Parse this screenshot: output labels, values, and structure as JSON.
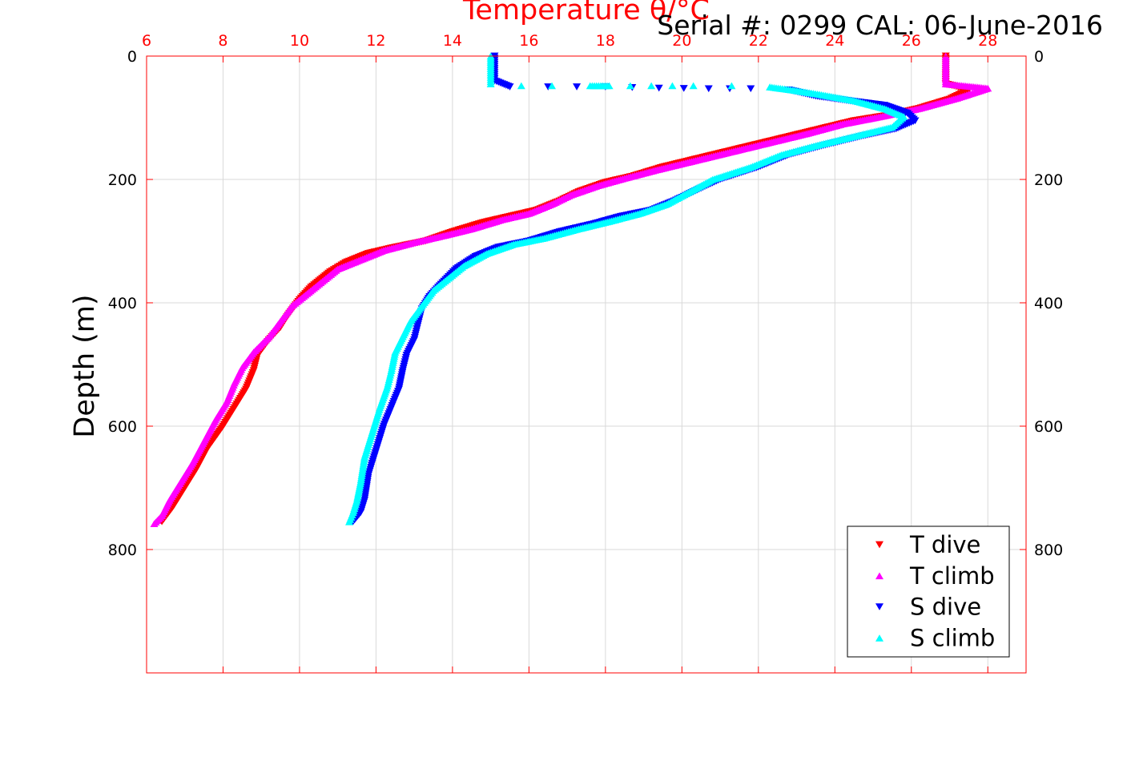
{
  "chart_data": {
    "type": "scatter",
    "title": "Serial #: 0299 CAL: 06-June-2016",
    "xlabel": "Temperature θ/°C",
    "ylabel": "Depth (m)",
    "xlim": [
      6,
      29
    ],
    "ylim": [
      0,
      1000
    ],
    "y_reversed": true,
    "x_axis_position": "top",
    "x_ticks": [
      "6",
      "8",
      "10",
      "12",
      "14",
      "16",
      "18",
      "20",
      "22",
      "24",
      "26",
      "28"
    ],
    "y_ticks_left": [
      "0",
      "200",
      "400",
      "600",
      "800"
    ],
    "y_ticks_right": [
      "0",
      "200",
      "400",
      "600",
      "800"
    ],
    "grid": true,
    "legend_position": "bottom-right",
    "colors": {
      "axis": "#ff0000",
      "grid": "#d9d9d9"
    },
    "series": [
      {
        "name": "T dive",
        "marker": "triangle-down",
        "color": "#ff0000",
        "points": [
          [
            26.9,
            0
          ],
          [
            26.9,
            20
          ],
          [
            26.9,
            45
          ],
          [
            27.5,
            55
          ],
          [
            27.0,
            70
          ],
          [
            26.2,
            85
          ],
          [
            25.5,
            95
          ],
          [
            24.5,
            105
          ],
          [
            23.5,
            120
          ],
          [
            22.5,
            135
          ],
          [
            21.5,
            150
          ],
          [
            20.5,
            165
          ],
          [
            19.5,
            180
          ],
          [
            18.7,
            195
          ],
          [
            18.0,
            205
          ],
          [
            17.3,
            220
          ],
          [
            16.8,
            235
          ],
          [
            16.2,
            250
          ],
          [
            15.5,
            260
          ],
          [
            14.8,
            270
          ],
          [
            14.0,
            285
          ],
          [
            13.3,
            300
          ],
          [
            12.5,
            310
          ],
          [
            11.8,
            320
          ],
          [
            11.2,
            335
          ],
          [
            10.8,
            350
          ],
          [
            10.3,
            375
          ],
          [
            10.0,
            395
          ],
          [
            9.7,
            420
          ],
          [
            9.5,
            440
          ],
          [
            9.2,
            460
          ],
          [
            8.9,
            485
          ],
          [
            8.8,
            510
          ],
          [
            8.6,
            540
          ],
          [
            8.3,
            570
          ],
          [
            8.0,
            600
          ],
          [
            7.6,
            635
          ],
          [
            7.3,
            670
          ],
          [
            7.0,
            700
          ],
          [
            6.7,
            730
          ],
          [
            6.4,
            755
          ]
        ]
      },
      {
        "name": "T climb",
        "marker": "triangle-up",
        "color": "#ff00ff",
        "points": [
          [
            26.9,
            0
          ],
          [
            26.9,
            20
          ],
          [
            26.9,
            45
          ],
          [
            28.0,
            52
          ],
          [
            27.2,
            68
          ],
          [
            26.2,
            85
          ],
          [
            25.2,
            98
          ],
          [
            24.2,
            110
          ],
          [
            23.3,
            125
          ],
          [
            22.3,
            140
          ],
          [
            21.3,
            155
          ],
          [
            20.3,
            170
          ],
          [
            19.3,
            185
          ],
          [
            18.5,
            198
          ],
          [
            17.8,
            210
          ],
          [
            17.1,
            225
          ],
          [
            16.6,
            240
          ],
          [
            16.0,
            255
          ],
          [
            15.3,
            265
          ],
          [
            14.5,
            280
          ],
          [
            13.7,
            292
          ],
          [
            13.0,
            302
          ],
          [
            12.2,
            315
          ],
          [
            11.6,
            330
          ],
          [
            11.0,
            345
          ],
          [
            10.6,
            365
          ],
          [
            10.2,
            385
          ],
          [
            9.8,
            405
          ],
          [
            9.5,
            430
          ],
          [
            9.2,
            455
          ],
          [
            8.8,
            480
          ],
          [
            8.5,
            505
          ],
          [
            8.3,
            530
          ],
          [
            8.1,
            560
          ],
          [
            7.8,
            590
          ],
          [
            7.5,
            625
          ],
          [
            7.2,
            660
          ],
          [
            6.9,
            690
          ],
          [
            6.6,
            720
          ],
          [
            6.4,
            745
          ],
          [
            6.2,
            758
          ]
        ]
      },
      {
        "name": "S dive",
        "marker": "triangle-down",
        "color": "#0000ff",
        "points": [
          [
            15.1,
            0
          ],
          [
            15.1,
            20
          ],
          [
            15.1,
            40
          ],
          [
            15.5,
            50
          ],
          [
            16.5,
            50
          ],
          [
            18.0,
            50
          ],
          [
            19.4,
            52
          ],
          [
            20.7,
            53
          ],
          [
            21.8,
            53
          ],
          [
            22.8,
            55
          ],
          [
            23.5,
            65
          ],
          [
            24.3,
            72
          ],
          [
            25.3,
            80
          ],
          [
            25.9,
            93
          ],
          [
            26.1,
            105
          ],
          [
            25.6,
            118
          ],
          [
            24.7,
            130
          ],
          [
            23.7,
            145
          ],
          [
            22.8,
            160
          ],
          [
            22.0,
            180
          ],
          [
            21.0,
            200
          ],
          [
            20.3,
            220
          ],
          [
            19.8,
            235
          ],
          [
            19.2,
            250
          ],
          [
            18.4,
            260
          ],
          [
            17.7,
            272
          ],
          [
            16.8,
            285
          ],
          [
            16.0,
            300
          ],
          [
            15.2,
            310
          ],
          [
            14.6,
            325
          ],
          [
            14.1,
            345
          ],
          [
            13.7,
            370
          ],
          [
            13.4,
            390
          ],
          [
            13.2,
            410
          ],
          [
            13.1,
            435
          ],
          [
            13.0,
            460
          ],
          [
            12.8,
            485
          ],
          [
            12.7,
            510
          ],
          [
            12.6,
            540
          ],
          [
            12.4,
            570
          ],
          [
            12.2,
            600
          ],
          [
            12.0,
            640
          ],
          [
            11.8,
            680
          ],
          [
            11.7,
            720
          ],
          [
            11.6,
            740
          ],
          [
            11.4,
            755
          ]
        ]
      },
      {
        "name": "S climb",
        "marker": "triangle-up",
        "color": "#00ffff",
        "points": [
          [
            15.0,
            0
          ],
          [
            15.0,
            20
          ],
          [
            15.0,
            45
          ],
          [
            15.8,
            48
          ],
          [
            16.6,
            48
          ],
          [
            17.6,
            48
          ],
          [
            18.1,
            48
          ],
          [
            20.3,
            48
          ],
          [
            21.3,
            48
          ],
          [
            22.3,
            50
          ],
          [
            22.9,
            55
          ],
          [
            23.6,
            62
          ],
          [
            24.5,
            72
          ],
          [
            25.3,
            85
          ],
          [
            25.8,
            98
          ],
          [
            25.5,
            115
          ],
          [
            24.5,
            130
          ],
          [
            23.5,
            145
          ],
          [
            22.6,
            160
          ],
          [
            21.8,
            180
          ],
          [
            20.8,
            200
          ],
          [
            20.2,
            220
          ],
          [
            19.6,
            240
          ],
          [
            18.9,
            255
          ],
          [
            18.1,
            268
          ],
          [
            17.3,
            280
          ],
          [
            16.4,
            295
          ],
          [
            15.6,
            305
          ],
          [
            14.9,
            320
          ],
          [
            14.3,
            340
          ],
          [
            13.9,
            360
          ],
          [
            13.5,
            380
          ],
          [
            13.2,
            405
          ],
          [
            12.9,
            430
          ],
          [
            12.7,
            455
          ],
          [
            12.5,
            480
          ],
          [
            12.4,
            510
          ],
          [
            12.3,
            535
          ],
          [
            12.1,
            570
          ],
          [
            11.9,
            610
          ],
          [
            11.7,
            650
          ],
          [
            11.6,
            690
          ],
          [
            11.5,
            720
          ],
          [
            11.4,
            740
          ],
          [
            11.3,
            755
          ]
        ]
      }
    ]
  }
}
